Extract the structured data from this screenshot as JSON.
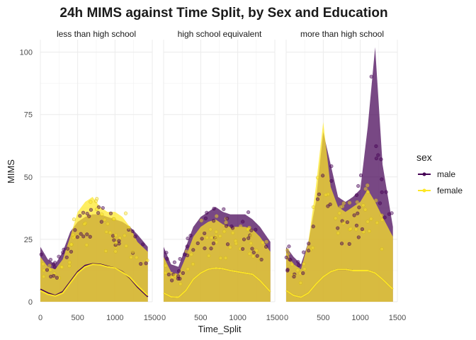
{
  "chart_data": {
    "type": "scatter",
    "title": "24h MIMS against Time Split, by Sex and Education",
    "xlabel": "Time_Split",
    "ylabel": "MIMS",
    "xlim": [
      0,
      1500
    ],
    "ylim": [
      0,
      105
    ],
    "x_ticks": [
      "0",
      "500",
      "1000",
      "1500"
    ],
    "y_ticks": [
      "0",
      "25",
      "50",
      "75",
      "100"
    ],
    "x_tick_values": [
      0,
      500,
      1000,
      1500
    ],
    "y_tick_values": [
      0,
      25,
      50,
      75,
      100
    ],
    "grid": true,
    "legend": {
      "title": "sex",
      "position": "right",
      "entries": [
        {
          "label": "male",
          "color": "#440154"
        },
        {
          "label": "female",
          "color": "#fde725"
        }
      ]
    },
    "panels": [
      {
        "strip": "less than high school",
        "trend": {
          "x": [
            0,
            100,
            200,
            300,
            400,
            500,
            600,
            700,
            800,
            900,
            1000,
            1100,
            1200,
            1300,
            1440
          ],
          "male": [
            5,
            3.5,
            2.5,
            4,
            8,
            12,
            14.5,
            15.2,
            15,
            14.2,
            13.5,
            12,
            9.5,
            6,
            2
          ],
          "female": [
            4.5,
            3,
            2.3,
            3.5,
            7.5,
            11.5,
            14,
            15,
            14.8,
            14,
            13.5,
            11.8,
            9.8,
            6.5,
            2.5
          ]
        },
        "male_band": {
          "x": [
            0,
            100,
            200,
            300,
            400,
            500,
            600,
            700,
            800,
            900,
            1000,
            1100,
            1200,
            1300,
            1440
          ],
          "upper": [
            22,
            17,
            15,
            20,
            28,
            32,
            34,
            35,
            35,
            34,
            33,
            32,
            30,
            27,
            22
          ]
        },
        "female_band": {
          "x": [
            0,
            100,
            200,
            300,
            400,
            500,
            600,
            700,
            800,
            900,
            1000,
            1100,
            1200,
            1300,
            1440
          ],
          "upper": [
            18,
            14,
            13,
            17,
            26,
            36,
            40,
            42,
            38,
            36,
            36,
            34,
            30,
            24,
            20
          ]
        }
      },
      {
        "strip": "high school equivalent",
        "trend": {
          "x": [
            0,
            100,
            200,
            300,
            400,
            500,
            600,
            700,
            800,
            900,
            1000,
            1100,
            1200,
            1300,
            1440
          ],
          "male": [
            3.5,
            2,
            1.8,
            4.5,
            9,
            11.5,
            13,
            13.5,
            13.2,
            12.5,
            12,
            11.5,
            11,
            8.5,
            4
          ],
          "female": [
            3.5,
            2,
            1.8,
            4.5,
            9,
            11.5,
            13,
            13.5,
            13.2,
            12.5,
            12,
            11.5,
            11,
            8.5,
            4
          ]
        },
        "male_band": {
          "x": [
            0,
            100,
            200,
            300,
            400,
            500,
            600,
            700,
            800,
            900,
            1000,
            1100,
            1200,
            1300,
            1440
          ],
          "upper": [
            22,
            15,
            14,
            22,
            30,
            34,
            36,
            38,
            36,
            35,
            35,
            35,
            33,
            30,
            24
          ]
        },
        "female_band": {
          "x": [
            0,
            100,
            200,
            300,
            400,
            500,
            600,
            700,
            800,
            900,
            1000,
            1100,
            1200,
            1300,
            1440
          ],
          "upper": [
            18,
            12,
            11,
            18,
            26,
            30,
            32,
            33,
            31,
            30,
            30,
            30,
            29,
            26,
            20
          ]
        }
      },
      {
        "strip": "more than high school",
        "trend": {
          "x": [
            0,
            100,
            200,
            300,
            400,
            500,
            600,
            700,
            800,
            900,
            1000,
            1100,
            1200,
            1300,
            1440
          ],
          "male": [
            4.5,
            2.5,
            1.8,
            3.5,
            7,
            10,
            12,
            13,
            13,
            12.5,
            12.5,
            12.5,
            11.5,
            9,
            5
          ],
          "female": [
            4.5,
            2.5,
            1.8,
            3.5,
            7,
            10,
            12,
            13,
            13,
            12.5,
            12.5,
            12.5,
            11.5,
            9,
            5
          ]
        },
        "male_band": {
          "x": [
            0,
            100,
            200,
            300,
            400,
            500,
            600,
            700,
            800,
            900,
            1000,
            1100,
            1200,
            1300,
            1440
          ],
          "upper": [
            22,
            18,
            15,
            24,
            40,
            68,
            55,
            42,
            40,
            42,
            45,
            70,
            102,
            55,
            30
          ]
        },
        "female_band": {
          "x": [
            0,
            100,
            200,
            300,
            400,
            500,
            600,
            700,
            800,
            900,
            1000,
            1100,
            1200,
            1300,
            1440
          ],
          "upper": [
            20,
            15,
            13,
            24,
            46,
            72,
            46,
            38,
            36,
            38,
            40,
            45,
            40,
            34,
            26
          ]
        }
      }
    ]
  }
}
